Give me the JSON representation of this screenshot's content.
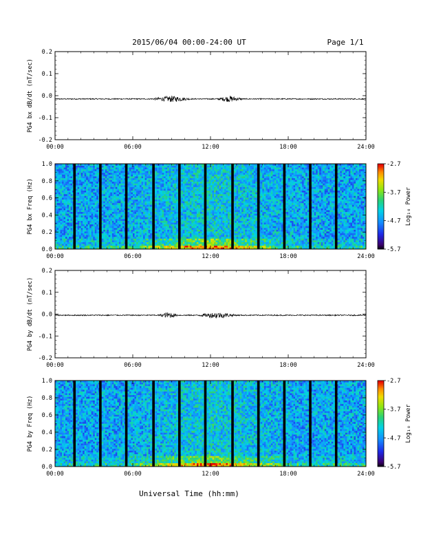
{
  "header": {
    "title": "2015/06/04  00:00-24:00 UT",
    "page": "Page 1/1"
  },
  "footer": {
    "xlabel": "Universal Time (hh:mm)"
  },
  "colorbar": {
    "label": "Log₁₀ Power",
    "ticks": [
      "-2.7",
      "-3.7",
      "-4.7",
      "-5.7"
    ]
  },
  "chart_data": [
    {
      "type": "line",
      "ylabel": "PG4 bx dB/dt (nT/sec)",
      "xlabel": "",
      "x_range": [
        "00:00",
        "24:00"
      ],
      "ylim": [
        -0.2,
        0.2
      ],
      "x_ticks": [
        "00:00",
        "06:00",
        "12:00",
        "18:00",
        "24:00"
      ],
      "y_ticks": [
        "0.2",
        "0.1",
        "0.0",
        "-0.1",
        "-0.2"
      ],
      "series": [
        {
          "baseline": -0.015,
          "active_intervals_hours": [
            [
              7.5,
              10.5
            ],
            [
              12.5,
              14.5
            ]
          ],
          "max_amplitude": 0.012
        }
      ]
    },
    {
      "type": "heatmap",
      "ylabel": "PG4 bx Freq (Hz)",
      "x_range": [
        "00:00",
        "24:00"
      ],
      "ylim": [
        0.0,
        1.0
      ],
      "x_ticks": [
        "00:00",
        "06:00",
        "12:00",
        "18:00",
        "24:00"
      ],
      "y_ticks": [
        "1.0",
        "0.8",
        "0.6",
        "0.4",
        "0.2",
        "0.0"
      ],
      "color_range": [
        -5.7,
        -2.7
      ],
      "data_gaps_hours": [
        1.5,
        3.5,
        5.5,
        7.6,
        9.6,
        11.6,
        13.7,
        15.7,
        17.7,
        19.7,
        21.7
      ]
    },
    {
      "type": "line",
      "ylabel": "PG4 by dB/dt (nT/sec)",
      "xlabel": "",
      "x_range": [
        "00:00",
        "24:00"
      ],
      "ylim": [
        -0.2,
        0.2
      ],
      "x_ticks": [
        "00:00",
        "06:00",
        "12:00",
        "18:00",
        "24:00"
      ],
      "y_ticks": [
        "0.2",
        "0.1",
        "0.0",
        "-0.1",
        "-0.2"
      ],
      "series": [
        {
          "baseline": -0.005,
          "active_intervals_hours": [
            [
              8.0,
              9.5
            ],
            [
              11.0,
              14.0
            ]
          ],
          "max_amplitude": 0.012
        }
      ]
    },
    {
      "type": "heatmap",
      "ylabel": "PG4 by Freq (Hz)",
      "x_range": [
        "00:00",
        "24:00"
      ],
      "ylim": [
        0.0,
        1.0
      ],
      "x_ticks": [
        "00:00",
        "06:00",
        "12:00",
        "18:00",
        "24:00"
      ],
      "y_ticks": [
        "1.0",
        "0.8",
        "0.6",
        "0.4",
        "0.2",
        "0.0"
      ],
      "color_range": [
        -5.7,
        -2.7
      ],
      "data_gaps_hours": [
        1.5,
        3.5,
        5.5,
        7.6,
        9.6,
        11.6,
        13.7,
        15.7,
        17.7,
        19.7,
        21.7
      ]
    }
  ]
}
